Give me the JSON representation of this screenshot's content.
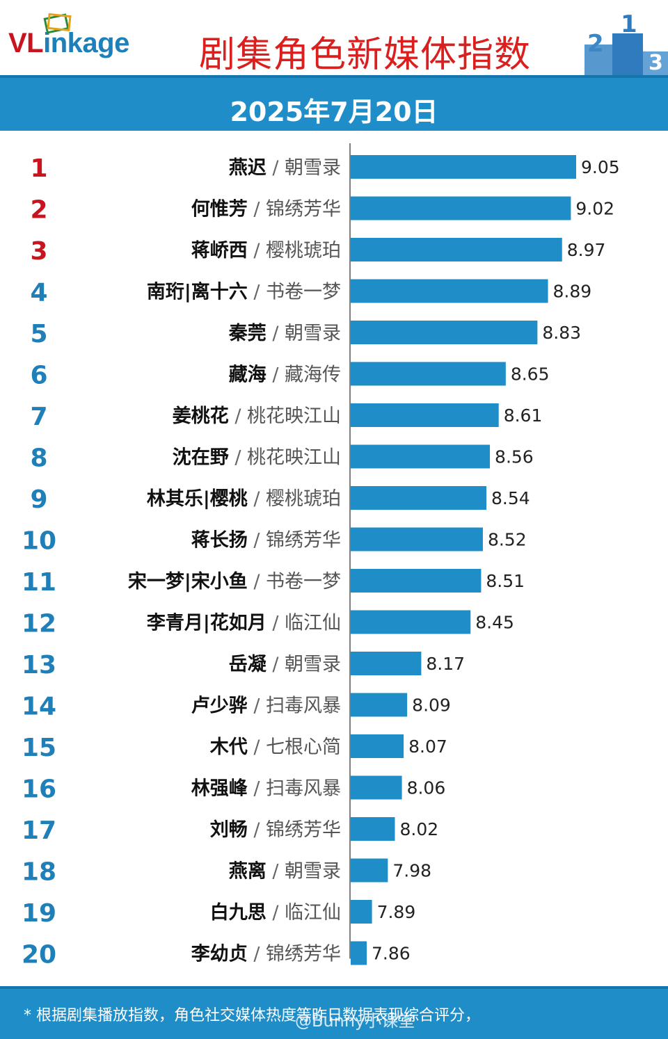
{
  "header": {
    "brand_prefix": "VL",
    "brand_suffix": "inkage",
    "title": "剧集角色新媒体指数"
  },
  "date": "2025年7月20日",
  "footer": {
    "note": "* 根据剧集播放指数，角色社交媒体热度等昨日数据表现综合评分，",
    "watermark": "@Bunny小课堂"
  },
  "colors": {
    "bar": "#1f8ec8",
    "rank_top3": "#c8141e",
    "rank_other": "#1f7fb8",
    "title": "#d9201f"
  },
  "chart_data": {
    "type": "bar",
    "orientation": "horizontal",
    "title": "剧集角色新媒体指数",
    "xlabel": "",
    "ylabel": "",
    "grid": false,
    "rows": [
      {
        "rank": "1",
        "role": "燕迟",
        "drama": "朝雪录",
        "value": 9.05
      },
      {
        "rank": "2",
        "role": "何惟芳",
        "drama": "锦绣芳华",
        "value": 9.02
      },
      {
        "rank": "3",
        "role": "蒋峤西",
        "drama": "樱桃琥珀",
        "value": 8.97
      },
      {
        "rank": "4",
        "role": "南珩|离十六",
        "drama": "书卷一梦",
        "value": 8.89
      },
      {
        "rank": "5",
        "role": "秦莞",
        "drama": "朝雪录",
        "value": 8.83
      },
      {
        "rank": "6",
        "role": "藏海",
        "drama": "藏海传",
        "value": 8.65
      },
      {
        "rank": "7",
        "role": "姜桃花",
        "drama": "桃花映江山",
        "value": 8.61
      },
      {
        "rank": "8",
        "role": "沈在野",
        "drama": "桃花映江山",
        "value": 8.56
      },
      {
        "rank": "9",
        "role": "林其乐|樱桃",
        "drama": "樱桃琥珀",
        "value": 8.54
      },
      {
        "rank": "10",
        "role": "蒋长扬",
        "drama": "锦绣芳华",
        "value": 8.52
      },
      {
        "rank": "11",
        "role": "宋一梦|宋小鱼",
        "drama": "书卷一梦",
        "value": 8.51
      },
      {
        "rank": "12",
        "role": "李青月|花如月",
        "drama": "临江仙",
        "value": 8.45
      },
      {
        "rank": "13",
        "role": "岳凝",
        "drama": "朝雪录",
        "value": 8.17
      },
      {
        "rank": "14",
        "role": "卢少骅",
        "drama": "扫毒风暴",
        "value": 8.09
      },
      {
        "rank": "15",
        "role": "木代",
        "drama": "七根心简",
        "value": 8.07
      },
      {
        "rank": "16",
        "role": "林强峰",
        "drama": "扫毒风暴",
        "value": 8.06
      },
      {
        "rank": "17",
        "role": "刘畅",
        "drama": "锦绣芳华",
        "value": 8.02
      },
      {
        "rank": "18",
        "role": "燕离",
        "drama": "朝雪录",
        "value": 7.98
      },
      {
        "rank": "19",
        "role": "白九思",
        "drama": "临江仙",
        "value": 7.89
      },
      {
        "rank": "20",
        "role": "李幼贞",
        "drama": "锦绣芳华",
        "value": 7.86
      }
    ]
  }
}
